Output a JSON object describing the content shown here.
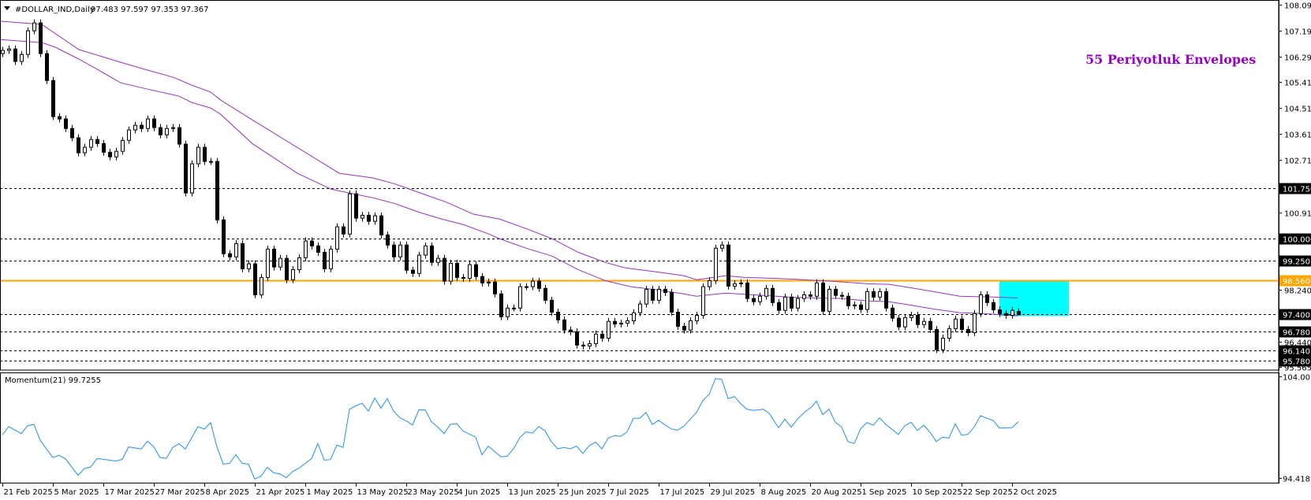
{
  "header": {
    "symbol_label": "#DOLLAR_IND,Daily",
    "ohlc_label": "97.483 97.597 97.353 97.367"
  },
  "annotation_text": "55 Periyotluk Envelopes",
  "colors": {
    "envelope": "#9932cc",
    "annotation": "#9900cc",
    "support_line": "#ffa500",
    "momentum": "#1e90ff",
    "rectangle": "#00ffff"
  },
  "chart_data": [
    {
      "type": "candlestick",
      "title": "#DOLLAR_IND,Daily",
      "ylim": [
        95.565,
        108.09
      ],
      "y_ticks": [
        "108.090",
        "107.190",
        "106.290",
        "105.415",
        "104.515",
        "103.615",
        "102.715",
        "100.915",
        "98.240",
        "96.440",
        "95.565"
      ],
      "y_tick_values": [
        108.09,
        107.19,
        106.29,
        105.415,
        104.515,
        103.615,
        102.715,
        100.915,
        98.24,
        96.44,
        95.565
      ],
      "x_tick_labels": [
        "21 Feb 2025",
        "5 Mar 2025",
        "17 Mar 2025",
        "27 Mar 2025",
        "8 Apr 2025",
        "21 Apr 2025",
        "1 May 2025",
        "13 May 2025",
        "23 May 2025",
        "4 Jun 2025",
        "13 Jun 2025",
        "25 Jun 2025",
        "7 Jul 2025",
        "17 Jul 2025",
        "29 Jul 2025",
        "8 Aug 2025",
        "20 Aug 2025",
        "1 Sep 2025",
        "10 Sep 2025",
        "22 Sep 2025",
        "2 Oct 2025"
      ],
      "x_tick_every_bars": 8,
      "first_open": 106.4,
      "closes": [
        106.51,
        106.56,
        106.13,
        106.37,
        107.19,
        107.46,
        106.4,
        105.47,
        104.22,
        104.14,
        103.81,
        103.49,
        102.97,
        103.16,
        103.43,
        103.29,
        102.99,
        102.83,
        103.02,
        103.4,
        103.76,
        103.92,
        103.81,
        104.14,
        103.84,
        103.59,
        103.81,
        103.84,
        103.27,
        101.58,
        102.59,
        103.16,
        102.67,
        102.67,
        100.65,
        99.48,
        99.37,
        99.83,
        98.96,
        99.13,
        98.06,
        98.66,
        99.64,
        99.02,
        99.32,
        98.58,
        98.93,
        99.34,
        99.92,
        99.75,
        99.53,
        98.96,
        99.64,
        100.41,
        100.16,
        101.55,
        100.71,
        100.81,
        100.6,
        100.79,
        100.13,
        99.78,
        99.37,
        99.78,
        98.91,
        98.8,
        99.43,
        99.75,
        99.18,
        99.32,
        98.53,
        99.15,
        98.66,
        98.63,
        99.1,
        98.69,
        98.47,
        98.5,
        98.09,
        97.3,
        97.6,
        97.6,
        98.34,
        98.34,
        98.53,
        98.28,
        97.87,
        97.46,
        97.19,
        96.84,
        96.78,
        96.32,
        96.29,
        96.37,
        96.7,
        96.56,
        97.14,
        97.05,
        97.08,
        97.16,
        97.44,
        97.74,
        98.25,
        97.87,
        98.25,
        98.14,
        97.46,
        96.97,
        96.84,
        97.16,
        97.35,
        98.34,
        98.55,
        99.67,
        99.78,
        98.36,
        98.44,
        98.47,
        97.93,
        97.82,
        98.01,
        98.28,
        97.79,
        97.52,
        97.98,
        97.6,
        97.93,
        98.06,
        98.01,
        98.47,
        97.49,
        98.25,
        98.04,
        98.01,
        97.68,
        97.71,
        97.55,
        98.17,
        97.98,
        98.17,
        97.6,
        97.25,
        96.95,
        97.27,
        97.35,
        97.03,
        97.14,
        96.86,
        96.16,
        96.56,
        96.89,
        97.22,
        96.86,
        96.75,
        97.41,
        98.06,
        97.79,
        97.54,
        97.41,
        97.35,
        97.52,
        97.367
      ],
      "last_bar": {
        "open": 97.483,
        "high": 97.597,
        "low": 97.353,
        "close": 97.367
      },
      "envelope_upper": [
        [
          -0.4,
          107.52
        ],
        [
          6.25,
          107.41
        ],
        [
          12.1,
          106.54
        ],
        [
          18.75,
          106.1
        ],
        [
          23,
          105.83
        ],
        [
          27.1,
          105.58
        ],
        [
          30,
          105.31
        ],
        [
          33,
          105.07
        ],
        [
          34.6,
          104.79
        ],
        [
          39.6,
          104.11
        ],
        [
          53.4,
          102.26
        ],
        [
          58.75,
          102.1
        ],
        [
          62.1,
          101.9
        ],
        [
          66.25,
          101.58
        ],
        [
          70.5,
          101.25
        ],
        [
          74.6,
          100.85
        ],
        [
          78.75,
          100.68
        ],
        [
          83,
          100.35
        ],
        [
          87.1,
          100.0
        ],
        [
          91.25,
          99.53
        ],
        [
          95.5,
          99.18
        ],
        [
          98.75,
          98.99
        ],
        [
          103.75,
          98.85
        ],
        [
          108,
          98.72
        ],
        [
          110,
          98.58
        ],
        [
          114.6,
          98.72
        ],
        [
          117.5,
          98.66
        ],
        [
          121.75,
          98.63
        ],
        [
          124.6,
          98.61
        ],
        [
          129.6,
          98.55
        ],
        [
          133.4,
          98.5
        ],
        [
          137.1,
          98.44
        ],
        [
          140.5,
          98.42
        ],
        [
          143.75,
          98.31
        ],
        [
          147.5,
          98.17
        ],
        [
          151.75,
          98.01
        ],
        [
          157.1,
          97.98
        ],
        [
          160.9,
          97.95
        ]
      ],
      "envelope_lower": [
        [
          -0.4,
          106.89
        ],
        [
          6.25,
          106.78
        ],
        [
          8.4,
          106.62
        ],
        [
          12.1,
          106.21
        ],
        [
          14.6,
          105.91
        ],
        [
          18.75,
          105.39
        ],
        [
          23,
          105.17
        ],
        [
          28,
          104.93
        ],
        [
          30,
          104.71
        ],
        [
          33,
          104.52
        ],
        [
          34.6,
          104.3
        ],
        [
          39.6,
          103.29
        ],
        [
          46.75,
          102.26
        ],
        [
          52.1,
          101.71
        ],
        [
          55,
          101.58
        ],
        [
          58.75,
          101.41
        ],
        [
          62.1,
          101.22
        ],
        [
          66.25,
          100.9
        ],
        [
          69.6,
          100.68
        ],
        [
          73,
          100.49
        ],
        [
          77.1,
          100.16
        ],
        [
          78.75,
          100.0
        ],
        [
          83,
          99.67
        ],
        [
          87.1,
          99.4
        ],
        [
          91.25,
          98.93
        ],
        [
          95.5,
          98.55
        ],
        [
          99.6,
          98.34
        ],
        [
          103.75,
          98.23
        ],
        [
          108,
          98.09
        ],
        [
          110,
          98.01
        ],
        [
          114.6,
          98.12
        ],
        [
          120.5,
          98.04
        ],
        [
          124.6,
          97.98
        ],
        [
          128.75,
          97.95
        ],
        [
          133,
          97.93
        ],
        [
          137.1,
          97.85
        ],
        [
          140.5,
          97.82
        ],
        [
          143.75,
          97.71
        ],
        [
          147.5,
          97.57
        ],
        [
          151.75,
          97.44
        ],
        [
          155.5,
          97.41
        ],
        [
          160.9,
          97.33
        ]
      ],
      "levels_dashed": [
        {
          "price": 101.75,
          "label": "101.750"
        },
        {
          "price": 100.0,
          "label": "100.000"
        },
        {
          "price": 99.25,
          "label": "99.250"
        },
        {
          "price": 97.4,
          "label": "97.400"
        },
        {
          "price": 96.78,
          "label": "96.780"
        },
        {
          "price": 96.14,
          "label": "96.140"
        },
        {
          "price": 95.78,
          "label": "95.780"
        }
      ],
      "level_solid": {
        "price": 98.56,
        "label": "98.560"
      },
      "rectangle": {
        "from_bar": 158,
        "to_bar": 169,
        "price_top": 98.53,
        "price_bottom": 97.33
      }
    },
    {
      "type": "line",
      "title": "Momentum(21) 99.7255",
      "ylim": [
        94.4189,
        104.0051
      ],
      "y_ticks": [
        "104.0051",
        "94.4189"
      ],
      "y_tick_values": [
        104.0051,
        94.4189
      ],
      "points": [
        [
          0,
          98.47
        ],
        [
          1,
          99.27
        ],
        [
          3,
          98.6
        ],
        [
          4,
          99.35
        ],
        [
          5,
          99.47
        ],
        [
          6,
          97.97
        ],
        [
          8,
          96.35
        ],
        [
          9,
          96.55
        ],
        [
          10,
          96.22
        ],
        [
          12,
          94.67
        ],
        [
          13,
          95.3
        ],
        [
          14,
          95.47
        ],
        [
          15,
          96.25
        ],
        [
          18,
          96.02
        ],
        [
          19,
          96.17
        ],
        [
          20,
          97.35
        ],
        [
          22,
          97.15
        ],
        [
          23,
          97.9
        ],
        [
          24,
          97.35
        ],
        [
          25,
          96.35
        ],
        [
          26,
          96.27
        ],
        [
          27,
          97.3
        ],
        [
          28,
          97.65
        ],
        [
          29,
          97.15
        ],
        [
          31,
          99.27
        ],
        [
          32,
          99.02
        ],
        [
          33,
          99.65
        ],
        [
          34,
          97.35
        ],
        [
          35,
          95.72
        ],
        [
          36,
          95.8
        ],
        [
          37,
          96.6
        ],
        [
          38,
          95.8
        ],
        [
          39,
          95.72
        ],
        [
          40,
          94.32
        ],
        [
          41,
          94.6
        ],
        [
          42,
          95.42
        ],
        [
          43,
          94.9
        ],
        [
          44,
          94.8
        ],
        [
          45,
          94.45
        ],
        [
          46,
          95.02
        ],
        [
          47,
          95.35
        ],
        [
          49,
          96.25
        ],
        [
          50,
          97.67
        ],
        [
          51,
          96.1
        ],
        [
          52,
          96.15
        ],
        [
          53,
          97.52
        ],
        [
          54,
          97.3
        ],
        [
          55,
          100.9
        ],
        [
          56,
          101.22
        ],
        [
          57,
          101.47
        ],
        [
          58,
          100.72
        ],
        [
          59,
          101.97
        ],
        [
          60,
          101.02
        ],
        [
          61,
          101.9
        ],
        [
          62,
          100.72
        ],
        [
          63,
          100.1
        ],
        [
          64,
          99.8
        ],
        [
          65,
          99.42
        ],
        [
          66,
          100.85
        ],
        [
          67,
          100.85
        ],
        [
          68,
          99.72
        ],
        [
          69,
          99.22
        ],
        [
          70,
          98.6
        ],
        [
          71,
          99.47
        ],
        [
          72,
          99.55
        ],
        [
          73,
          98.85
        ],
        [
          75,
          98.27
        ],
        [
          76,
          96.6
        ],
        [
          77,
          97.42
        ],
        [
          79,
          96.42
        ],
        [
          80,
          96.47
        ],
        [
          81,
          97.17
        ],
        [
          82,
          98.22
        ],
        [
          83,
          98.77
        ],
        [
          84,
          98.65
        ],
        [
          85,
          99.27
        ],
        [
          86,
          98.85
        ],
        [
          87,
          97.85
        ],
        [
          88,
          97.17
        ],
        [
          89,
          97.3
        ],
        [
          90,
          97.17
        ],
        [
          91,
          97.42
        ],
        [
          92,
          96.72
        ],
        [
          93,
          97.47
        ],
        [
          94,
          97.8
        ],
        [
          95,
          97.17
        ],
        [
          96,
          98.17
        ],
        [
          97,
          98.42
        ],
        [
          98,
          98.35
        ],
        [
          99,
          98.77
        ],
        [
          100,
          100.05
        ],
        [
          101,
          100.05
        ],
        [
          102,
          100.6
        ],
        [
          103,
          99.47
        ],
        [
          104,
          99.85
        ],
        [
          105,
          99.42
        ],
        [
          106,
          99.05
        ],
        [
          107,
          98.92
        ],
        [
          108,
          99.3
        ],
        [
          109,
          99.97
        ],
        [
          110,
          100.6
        ],
        [
          111,
          101.72
        ],
        [
          112,
          102.3
        ],
        [
          113,
          103.8
        ],
        [
          114,
          103.72
        ],
        [
          115,
          101.9
        ],
        [
          116,
          102.1
        ],
        [
          117,
          101.42
        ],
        [
          118,
          100.9
        ],
        [
          119,
          100.8
        ],
        [
          120.6,
          100.9
        ],
        [
          121.5,
          100.52
        ],
        [
          123,
          99.17
        ],
        [
          124,
          99.97
        ],
        [
          125,
          99.22
        ],
        [
          126,
          99.97
        ],
        [
          127.3,
          100.72
        ],
        [
          128.2,
          101.1
        ],
        [
          129,
          101.67
        ],
        [
          130,
          100.4
        ],
        [
          131,
          100.92
        ],
        [
          132,
          99.67
        ],
        [
          133,
          99.22
        ],
        [
          134,
          97.85
        ],
        [
          135,
          97.67
        ],
        [
          136,
          99.05
        ],
        [
          137,
          99.65
        ],
        [
          138,
          99.4
        ],
        [
          139,
          100.1
        ],
        [
          140,
          99.47
        ],
        [
          142,
          98.52
        ],
        [
          143,
          99.35
        ],
        [
          144,
          99.67
        ],
        [
          145,
          98.9
        ],
        [
          146,
          99.4
        ],
        [
          147,
          98.72
        ],
        [
          148,
          97.85
        ],
        [
          149,
          98.27
        ],
        [
          150,
          98.17
        ],
        [
          151,
          99.52
        ],
        [
          152,
          98.47
        ],
        [
          153,
          98.52
        ],
        [
          154,
          99.22
        ],
        [
          155,
          100.3
        ],
        [
          156,
          100.05
        ],
        [
          157,
          99.85
        ],
        [
          158,
          99.12
        ],
        [
          160,
          99.17
        ],
        [
          161,
          99.73
        ]
      ]
    }
  ]
}
